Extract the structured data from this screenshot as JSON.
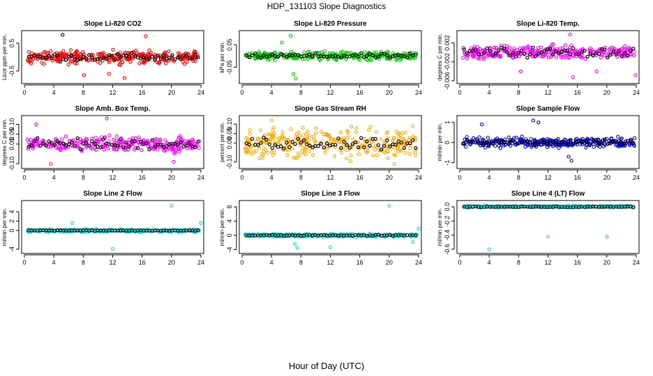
{
  "figure": {
    "title": "HDP_131103  Slope Diagnostics",
    "xlabel": "Hour of Day (UTC)"
  },
  "colors": {
    "black": "#000000"
  },
  "chart_data": [
    {
      "type": "scatter",
      "title": "Slope Li-820 CO2",
      "ylabel": "Licor ppm per min.",
      "color": "#ff0000",
      "xlim": [
        0,
        24
      ],
      "ylim": [
        -0.85,
        0.85
      ],
      "xticks": [
        0,
        4,
        8,
        12,
        16,
        20,
        24
      ],
      "yticks": [
        "-0.5",
        "0.5"
      ],
      "ytickvals": [
        -0.5,
        0.5
      ],
      "spread": 0.33,
      "outliers": [
        [
          5.2,
          0.8
        ],
        [
          11.5,
          -0.6
        ],
        [
          13.6,
          -0.75
        ],
        [
          8.1,
          -0.65
        ],
        [
          16.5,
          0.75
        ]
      ],
      "black_spread": 0.2
    },
    {
      "type": "scatter",
      "title": "Slope Li-820 Pressure",
      "ylabel": "kPa per min.",
      "color": "#00cc00",
      "xlim": [
        0,
        24
      ],
      "ylim": [
        -0.11,
        0.1
      ],
      "xticks": [
        0,
        4,
        8,
        12,
        16,
        20,
        24
      ],
      "yticks": [
        "-0.05",
        "0.05"
      ],
      "ytickvals": [
        -0.05,
        0.05
      ],
      "spread": 0.025,
      "outliers": [
        [
          6.6,
          0.09
        ],
        [
          7.3,
          -0.1
        ],
        [
          7.0,
          -0.08
        ],
        [
          5.4,
          0.06
        ]
      ],
      "black_spread": 0.015
    },
    {
      "type": "scatter",
      "title": "Slope Li-820 Temp.",
      "ylabel": "degrees C per min.",
      "color": "#ff00ff",
      "xlim": [
        0,
        24
      ],
      "ylim": [
        -0.006,
        0.004
      ],
      "xticks": [
        0,
        4,
        8,
        12,
        16,
        20,
        24
      ],
      "yticks": [
        "-0.006",
        "-0.002",
        "0.002"
      ],
      "ytickvals": [
        -0.006,
        -0.002,
        0.002
      ],
      "spread": 0.002,
      "outliers": [
        [
          15.0,
          0.0038
        ],
        [
          15.4,
          -0.0052
        ],
        [
          18.6,
          -0.004
        ],
        [
          23.9,
          -0.0048
        ],
        [
          8.3,
          -0.004
        ]
      ],
      "black_spread": 0.0015
    },
    {
      "type": "scatter",
      "title": "Slope Amb. Box Temp.",
      "ylabel": "degrees C per min.",
      "color": "#ff00ff",
      "xlim": [
        0,
        24
      ],
      "ylim": [
        -0.11,
        0.13
      ],
      "xticks": [
        0,
        4,
        8,
        12,
        16,
        20,
        24
      ],
      "yticks": [
        "-0.10",
        "0.00",
        "0.05",
        "0.10"
      ],
      "ytickvals": [
        -0.1,
        0.0,
        0.05,
        0.1
      ],
      "spread": 0.055,
      "outliers": [
        [
          11.2,
          0.13
        ],
        [
          3.6,
          -0.1
        ],
        [
          20.3,
          -0.09
        ],
        [
          1.6,
          0.1
        ]
      ],
      "black_spread": 0.04
    },
    {
      "type": "scatter",
      "title": "Slope Gas Stream RH",
      "ylabel": "percent per min.",
      "color": "#ffaa00",
      "xlim": [
        0,
        24
      ],
      "ylim": [
        -0.12,
        0.13
      ],
      "xticks": [
        0,
        4,
        8,
        12,
        16,
        20,
        24
      ],
      "yticks": [
        "-0.10",
        "0.00",
        "0.05",
        "0.10"
      ],
      "ytickvals": [
        -0.1,
        0.0,
        0.05,
        0.1
      ],
      "spread": 0.11,
      "outliers": [
        [
          4.0,
          0.12
        ],
        [
          20.7,
          -0.11
        ]
      ],
      "black_spread": 0.05
    },
    {
      "type": "scatter",
      "title": "Slope Sample Flow",
      "ylabel": "ml/min per min.",
      "color": "#0000cc",
      "xlim": [
        0,
        24
      ],
      "ylim": [
        -1.15,
        1.2
      ],
      "xticks": [
        0,
        4,
        8,
        12,
        16,
        20,
        24
      ],
      "yticks": [
        "-1",
        "0",
        "1"
      ],
      "ytickvals": [
        -1,
        0,
        1
      ],
      "spread": 0.35,
      "outliers": [
        [
          10.0,
          1.1
        ],
        [
          10.7,
          1.0
        ],
        [
          15.2,
          -0.9
        ],
        [
          14.8,
          -0.7
        ],
        [
          3.0,
          0.9
        ]
      ],
      "black_spread": 0.2
    },
    {
      "type": "scatter",
      "title": "Slope Line 2 Flow",
      "ylabel": "ml/min per min.",
      "color": "#00e0e0",
      "xlim": [
        0,
        24
      ],
      "ylim": [
        -4.3,
        5.8
      ],
      "xticks": [
        0,
        4,
        8,
        12,
        16,
        20,
        24
      ],
      "yticks": [
        "-4",
        "0",
        "2",
        "4"
      ],
      "ytickvals": [
        -4,
        0,
        2,
        4
      ],
      "spread": 0.45,
      "outliers": [
        [
          20.0,
          5.3
        ],
        [
          12.0,
          -3.9
        ],
        [
          24.0,
          1.6
        ],
        [
          6.5,
          1.6
        ]
      ],
      "black_spread": 0.1
    },
    {
      "type": "scatter",
      "title": "Slope Line 3 Flow",
      "ylabel": "ml/min per min.",
      "color": "#00e0e0",
      "xlim": [
        0,
        24
      ],
      "ylim": [
        -4.3,
        9.0
      ],
      "xticks": [
        0,
        4,
        8,
        12,
        16,
        20,
        24
      ],
      "yticks": [
        "-4",
        "0",
        "4",
        "8"
      ],
      "ytickvals": [
        -4,
        0,
        4,
        8
      ],
      "spread": 0.6,
      "outliers": [
        [
          20.0,
          8.3
        ],
        [
          12.0,
          -3.3
        ],
        [
          7.5,
          -3.5
        ],
        [
          24.0,
          1.9
        ],
        [
          7.2,
          -2.4
        ],
        [
          23.2,
          -1.8
        ]
      ],
      "black_spread": 0.3
    },
    {
      "type": "scatter",
      "title": "Slope Line 4 (LT) Flow",
      "ylabel": "ml/min per min.",
      "color": "#00e0e0",
      "xlim": [
        0,
        24
      ],
      "ylim": [
        -0.62,
        0.05
      ],
      "xticks": [
        0,
        4,
        8,
        12,
        16,
        20,
        24
      ],
      "yticks": [
        "-0.6",
        "-0.4",
        "-0.2",
        "0.0"
      ],
      "ytickvals": [
        -0.6,
        -0.4,
        -0.2,
        0.0
      ],
      "spread": 0.02,
      "outliers": [
        [
          4.0,
          -0.6
        ],
        [
          12.0,
          -0.42
        ],
        [
          20.0,
          -0.42
        ]
      ],
      "black_spread": 0.01
    }
  ]
}
